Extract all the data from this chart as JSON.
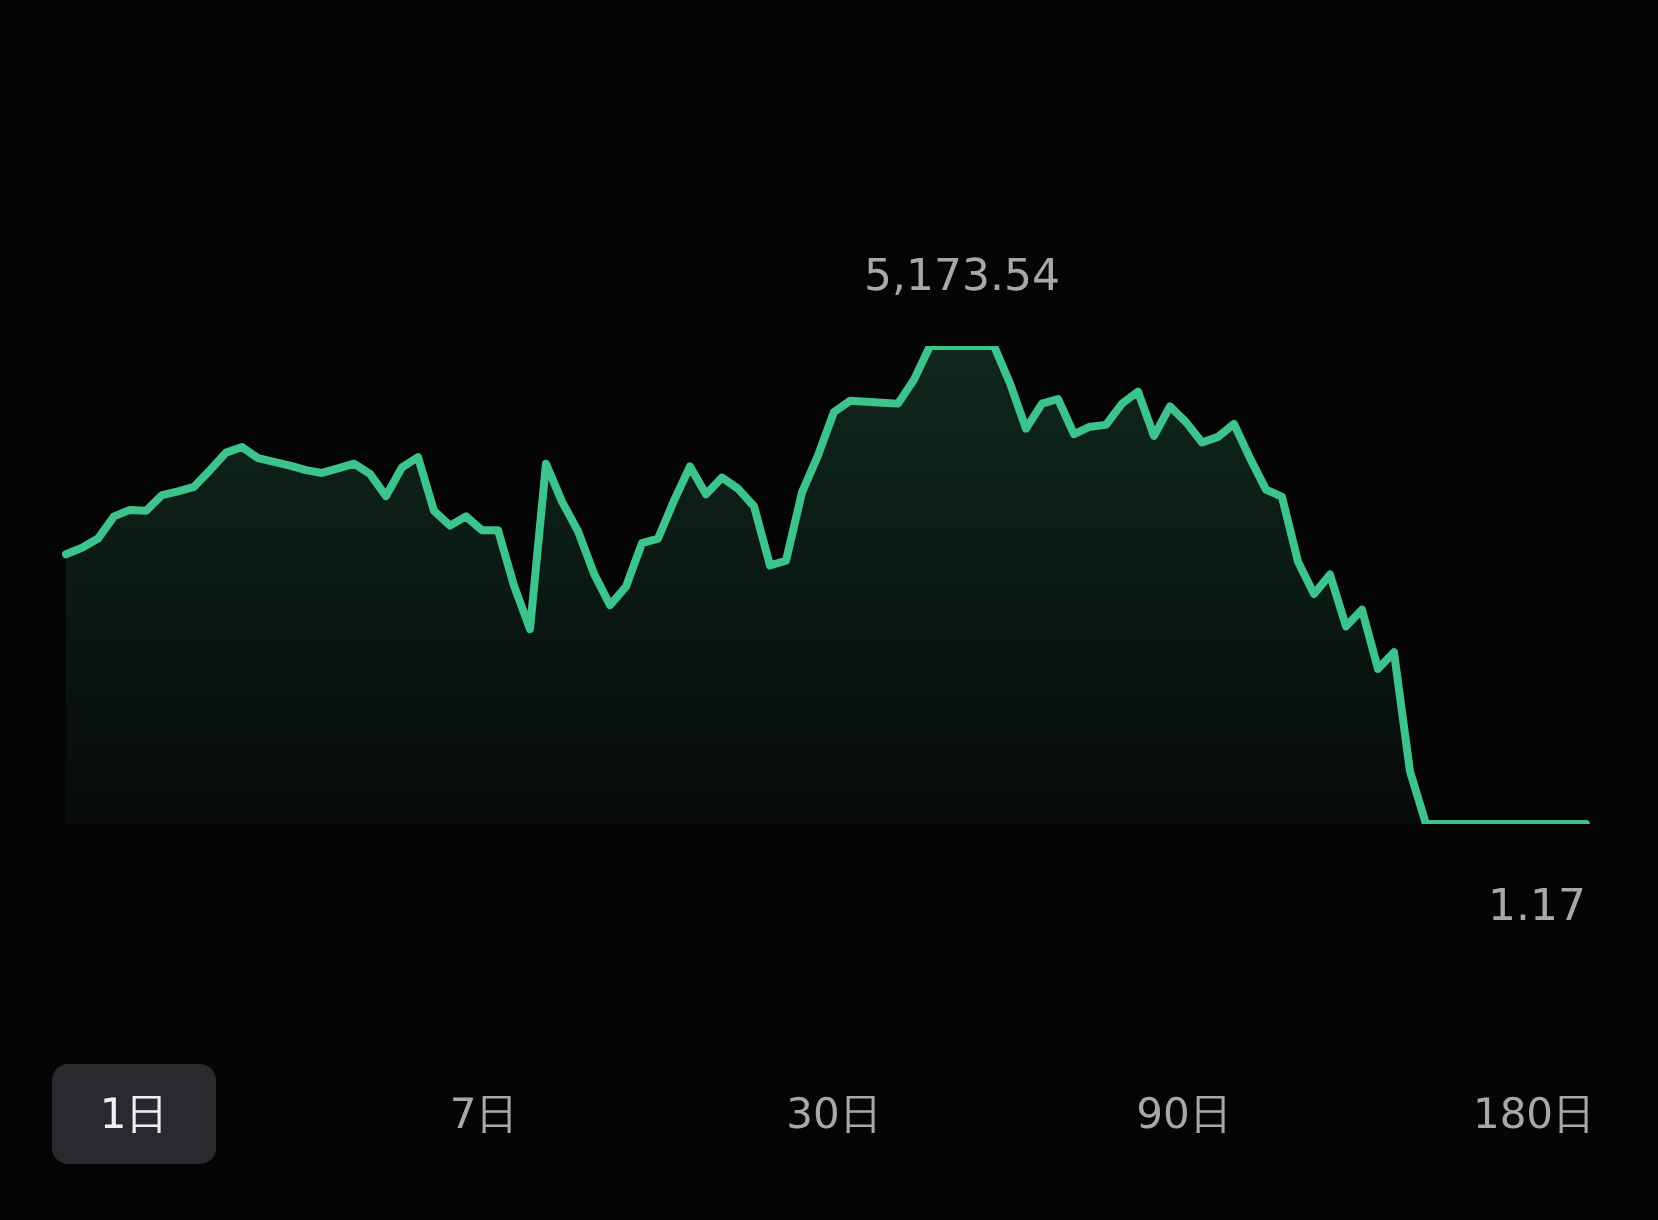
{
  "chart_data": {
    "type": "area",
    "categories": [
      null,
      null,
      null,
      null,
      null,
      null,
      null,
      null,
      null,
      null,
      null,
      null,
      null,
      null,
      null,
      null,
      null,
      null,
      null,
      null,
      null,
      null,
      null,
      null,
      null,
      null,
      null,
      null,
      null,
      null,
      null,
      null,
      null,
      null,
      null,
      null,
      null,
      null,
      null,
      null,
      null,
      null,
      null,
      null,
      null,
      null,
      null,
      null,
      null,
      null,
      null,
      null,
      null,
      null,
      null,
      null,
      null,
      null,
      null,
      null,
      null,
      null,
      null,
      null,
      null,
      null,
      null,
      null,
      null,
      null,
      null,
      null,
      null,
      null,
      null,
      null,
      null,
      null,
      null,
      null,
      null,
      null,
      null,
      null,
      null,
      null,
      null,
      null,
      null,
      null,
      null,
      null,
      null,
      null,
      null,
      null
    ],
    "values": [
      2920,
      2990,
      3090,
      3330,
      3400,
      3390,
      3560,
      3600,
      3650,
      3830,
      4020,
      4080,
      3960,
      3920,
      3880,
      3830,
      3800,
      3850,
      3900,
      3790,
      3550,
      3860,
      3970,
      3390,
      3230,
      3330,
      3180,
      3180,
      2580,
      2110,
      3900,
      3490,
      3170,
      2710,
      2370,
      2570,
      3040,
      3090,
      3500,
      3870,
      3570,
      3750,
      3630,
      3440,
      2800,
      2850,
      3590,
      3990,
      4460,
      4580,
      4570,
      4560,
      4550,
      4810,
      5173.54,
      5173.54,
      5173.54,
      5173.54,
      5173.54,
      4770,
      4280,
      4550,
      4600,
      4220,
      4300,
      4320,
      4550,
      4680,
      4200,
      4520,
      4350,
      4130,
      4190,
      4330,
      3960,
      3620,
      3540,
      2840,
      2490,
      2700,
      2140,
      2320,
      1680,
      1860,
      570,
      1.17,
      1.17,
      1.17,
      1.17,
      1.17,
      1.17,
      1.17,
      1.17,
      1.17,
      1.17,
      1.17
    ],
    "value_labels": [
      null,
      null,
      null,
      null,
      null,
      null,
      null,
      null,
      null,
      null,
      null,
      null,
      null,
      null,
      null,
      null,
      null,
      null,
      null,
      null,
      null,
      null,
      null,
      null,
      null,
      null,
      null,
      null,
      null,
      null,
      null,
      null,
      null,
      null,
      null,
      null,
      null,
      null,
      null,
      null,
      null,
      null,
      null,
      null,
      null,
      null,
      null,
      null,
      null,
      null,
      null,
      null,
      null,
      null,
      null,
      null,
      "5,173.54",
      null,
      null,
      null,
      null,
      null,
      null,
      null,
      null,
      null,
      null,
      null,
      null,
      null,
      null,
      null,
      null,
      null,
      null,
      null,
      null,
      null,
      null,
      null,
      null,
      null,
      null,
      null,
      null,
      null,
      null,
      null,
      null,
      null,
      null,
      null,
      null,
      null,
      null,
      "1.17"
    ],
    "color": "#3cc48c",
    "annotations": [
      "1日",
      "7日",
      "30日",
      "90日",
      "180日"
    ]
  }
}
